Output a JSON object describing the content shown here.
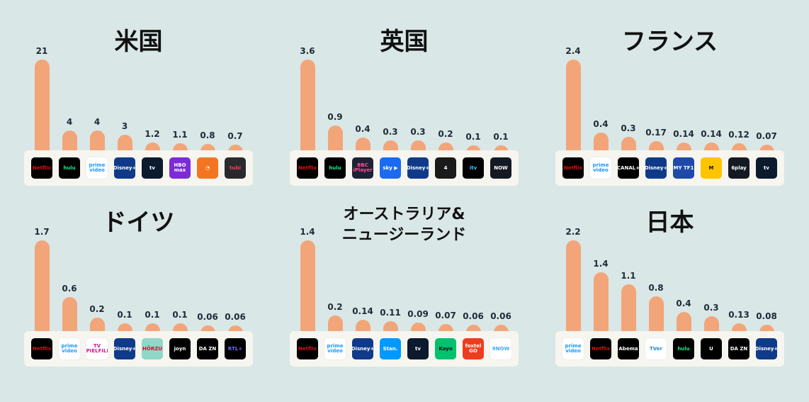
{
  "chart_data": [
    {
      "type": "bar",
      "title": "米国",
      "categories": [
        "Netflix",
        "Hulu",
        "Prime Video",
        "Disney+",
        "Apple TV+",
        "HBO Max",
        "Crunchyroll",
        "Tubi"
      ],
      "values": [
        21,
        4,
        4,
        3,
        1.2,
        1.1,
        0.8,
        0.7
      ],
      "labels": [
        "21",
        "4",
        "4",
        "3",
        "1.2",
        "1.1",
        "0.8",
        "0.7"
      ]
    },
    {
      "type": "bar",
      "title": "英国",
      "categories": [
        "Netflix",
        "Hulu",
        "BBC iPlayer",
        "Sky",
        "Disney+",
        "Channel 4",
        "ITV",
        "NOW"
      ],
      "values": [
        3.6,
        0.9,
        0.4,
        0.3,
        0.3,
        0.2,
        0.1,
        0.1
      ],
      "labels": [
        "3.6",
        "0.9",
        "0.4",
        "0.3",
        "0.3",
        "0.2",
        "0.1",
        "0.1"
      ]
    },
    {
      "type": "bar",
      "title": "フランス",
      "categories": [
        "Netflix",
        "Prime Video",
        "Canal+",
        "Disney+",
        "MYTF1",
        "Molotov",
        "6play",
        "Apple TV+"
      ],
      "values": [
        2.4,
        0.4,
        0.3,
        0.17,
        0.14,
        0.14,
        0.12,
        0.07
      ],
      "labels": [
        "2.4",
        "0.4",
        "0.3",
        "0.17",
        "0.14",
        "0.14",
        "0.12",
        "0.07"
      ]
    },
    {
      "type": "bar",
      "title": "ドイツ",
      "categories": [
        "Netflix",
        "Prime Video",
        "TV Spielfilm",
        "Disney+",
        "Hörzu",
        "Joyn",
        "DAZN",
        "RTL+"
      ],
      "values": [
        1.7,
        0.6,
        0.2,
        0.1,
        0.1,
        0.1,
        0.06,
        0.06
      ],
      "labels": [
        "1.7",
        "0.6",
        "0.2",
        "0.1",
        "0.1",
        "0.1",
        "0.06",
        "0.06"
      ]
    },
    {
      "type": "bar",
      "title": "オーストラリア&\nニュージーランド",
      "categories": [
        "Netflix",
        "Prime Video",
        "Disney+",
        "Stan",
        "Apple TV+",
        "Kayo",
        "Foxtel GO",
        "9Now"
      ],
      "values": [
        1.4,
        0.2,
        0.14,
        0.11,
        0.09,
        0.07,
        0.06,
        0.06
      ],
      "labels": [
        "1.4",
        "0.2",
        "0.14",
        "0.11",
        "0.09",
        "0.07",
        "0.06",
        "0.06"
      ]
    },
    {
      "type": "bar",
      "title": "日本",
      "categories": [
        "Prime Video",
        "Netflix",
        "Abema",
        "TVer",
        "Hulu",
        "U-NEXT",
        "DAZN",
        "Disney+"
      ],
      "values": [
        2.2,
        1.4,
        1.1,
        0.8,
        0.4,
        0.3,
        0.13,
        0.08
      ],
      "labels": [
        "2.2",
        "1.4",
        "1.1",
        "0.8",
        "0.4",
        "0.3",
        "0.13",
        "0.08"
      ]
    }
  ],
  "colors": {
    "background": "#d9e7e6",
    "bar": "#f3a57a",
    "panel": "#f6f5ef",
    "label": "#1d2b3a"
  },
  "logos": {
    "Netflix": {
      "text": "Netflix",
      "bg": "#000000",
      "fg": "#e50914"
    },
    "Hulu": {
      "text": "hulu",
      "bg": "#000000",
      "fg": "#1ce783"
    },
    "Prime Video": {
      "text": "prime video",
      "bg": "#ffffff",
      "fg": "#1a98ff"
    },
    "Disney+": {
      "text": "Disney+",
      "bg": "#0f3a8a",
      "fg": "#ffffff"
    },
    "Apple TV+": {
      "text": " tv",
      "bg": "#0b1a2c",
      "fg": "#ffffff"
    },
    "HBO Max": {
      "text": "HBO max",
      "bg": "#7b2bd8",
      "fg": "#ffffff"
    },
    "Crunchyroll": {
      "text": "◔",
      "bg": "#f47521",
      "fg": "#ffffff"
    },
    "Tubi": {
      "text": "tubi",
      "bg": "#2a2a2e",
      "fg": "#ff3b4f"
    },
    "BBC iPlayer": {
      "text": "BBC iPlayer",
      "bg": "#1b2235",
      "fg": "#ff4c98"
    },
    "Sky": {
      "text": "sky ▶",
      "bg": "#1b6bf0",
      "fg": "#ffffff"
    },
    "Channel 4": {
      "text": "4",
      "bg": "#1a1a1a",
      "fg": "#ffffff"
    },
    "ITV": {
      "text": "itv",
      "bg": "#000000",
      "fg": "#33c9ff"
    },
    "NOW": {
      "text": "NOW",
      "bg": "#141a24",
      "fg": "#ffffff"
    },
    "Canal+": {
      "text": "CANAL+",
      "bg": "#000000",
      "fg": "#ffffff"
    },
    "MYTF1": {
      "text": "MY TF1",
      "bg": "#1f49a8",
      "fg": "#ffffff"
    },
    "Molotov": {
      "text": "M",
      "bg": "#ffc400",
      "fg": "#111111"
    },
    "6play": {
      "text": "6play",
      "bg": "#141a24",
      "fg": "#ffffff"
    },
    "TV Spielfilm": {
      "text": "TV SPIELFILM",
      "bg": "#ffffff",
      "fg": "#d4148c"
    },
    "Hörzu": {
      "text": "HÖRZU",
      "bg": "#8fd8c8",
      "fg": "#e4002b"
    },
    "Joyn": {
      "text": "joyn",
      "bg": "#000000",
      "fg": "#ffffff"
    },
    "DAZN": {
      "text": "DA ZN",
      "bg": "#000000",
      "fg": "#ffffff"
    },
    "RTL+": {
      "text": "RTL+",
      "bg": "#000000",
      "fg": "#6b6bff"
    },
    "Stan": {
      "text": "Stan.",
      "bg": "#0099ff",
      "fg": "#ffffff"
    },
    "Kayo": {
      "text": "Kayo",
      "bg": "#00c26e",
      "fg": "#111111"
    },
    "Foxtel GO": {
      "text": "foxtel GO",
      "bg": "#f03c1e",
      "fg": "#ffffff"
    },
    "9Now": {
      "text": "9NOW",
      "bg": "#ffffff",
      "fg": "#2ab4f0"
    },
    "Abema": {
      "text": "Abema",
      "bg": "#000000",
      "fg": "#ffffff"
    },
    "TVer": {
      "text": "TVer",
      "bg": "#ffffff",
      "fg": "#1a8cd8"
    },
    "U-NEXT": {
      "text": "U",
      "bg": "#000000",
      "fg": "#ffffff"
    }
  }
}
